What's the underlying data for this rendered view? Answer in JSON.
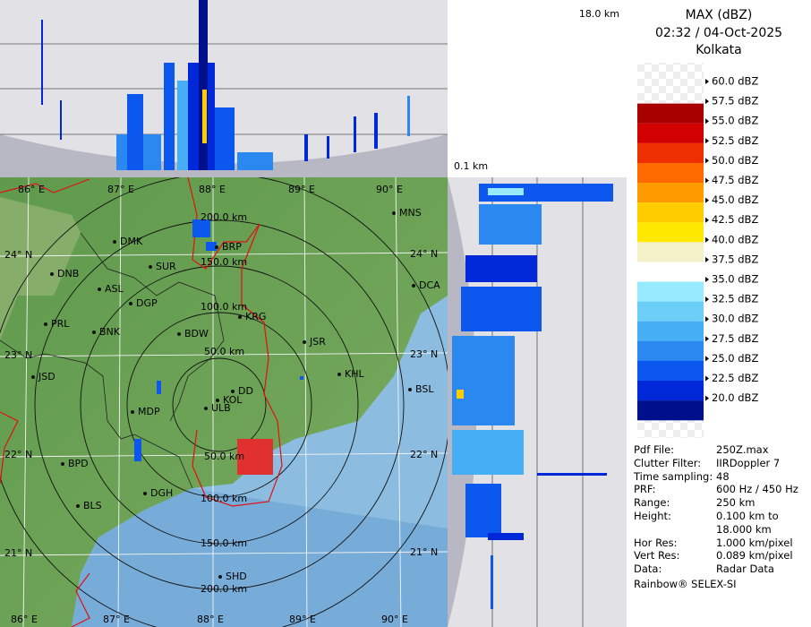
{
  "header": {
    "title": "MAX (dBZ)",
    "time": "02:32 / 04-Oct-2025",
    "station": "Kolkata"
  },
  "side_panels": {
    "top_height": "18.0 km",
    "bottom_height": "0.1 km"
  },
  "legend": [
    {
      "label": "60.0 dBZ"
    },
    {
      "label": "57.5 dBZ",
      "color": "#a80000"
    },
    {
      "label": "55.0 dBZ",
      "color": "#d20000"
    },
    {
      "label": "52.5 dBZ",
      "color": "#ee3000"
    },
    {
      "label": "50.0 dBZ",
      "color": "#ff6a00"
    },
    {
      "label": "47.5 dBZ",
      "color": "#ff9a00"
    },
    {
      "label": "45.0 dBZ",
      "color": "#ffcc00"
    },
    {
      "label": "42.5 dBZ",
      "color": "#ffe800"
    },
    {
      "label": "40.0 dBZ",
      "color": "#f4f0c8"
    },
    {
      "label": "37.5 dBZ",
      "color": "#ffffff"
    },
    {
      "label": "35.0 dBZ",
      "color": "#98eaff"
    },
    {
      "label": "32.5 dBZ",
      "color": "#6ccff8"
    },
    {
      "label": "30.0 dBZ",
      "color": "#46aef4"
    },
    {
      "label": "27.5 dBZ",
      "color": "#2a88f0"
    },
    {
      "label": "25.0 dBZ",
      "color": "#0c58ee"
    },
    {
      "label": "22.5 dBZ",
      "color": "#0028d8"
    },
    {
      "label": "20.0 dBZ",
      "color": "#00108c"
    }
  ],
  "map": {
    "lon_labels": [
      "86° E",
      "87° E",
      "88° E",
      "89° E",
      "90° E"
    ],
    "lat_labels": [
      "24° N",
      "23° N",
      "22° N",
      "21° N"
    ],
    "range_labels": [
      "50.0 km",
      "100.0 km",
      "150.0 km",
      "200.0 km"
    ],
    "cities": [
      "MNS",
      "DMK",
      "BRP",
      "DNB",
      "SUR",
      "ASL",
      "DGP",
      "DCA",
      "KRG",
      "PRL",
      "BNK",
      "BDW",
      "JSR",
      "JSD",
      "KHL",
      "DD",
      "KOL",
      "BSL",
      "MDP",
      "ULB",
      "BPD",
      "DGH",
      "BLS",
      "SHD"
    ]
  },
  "info": [
    {
      "label": "Pdf File:",
      "value": "250Z.max"
    },
    {
      "label": "Clutter Filter:",
      "value": "IIRDoppler 7"
    },
    {
      "label": "Time sampling:",
      "value": "48"
    },
    {
      "label": "PRF:",
      "value": "600 Hz / 450 Hz"
    },
    {
      "label": "Range:",
      "value": "250 km"
    },
    {
      "label": "Height:",
      "value": "0.100 km to 18.000 km"
    },
    {
      "label": "Hor Res:",
      "value": "1.000 km/pixel"
    },
    {
      "label": "Vert Res:",
      "value": "0.089 km/pixel"
    },
    {
      "label": "Data:",
      "value": "Radar Data"
    }
  ],
  "footer": "Rainbow® SELEX-SI"
}
